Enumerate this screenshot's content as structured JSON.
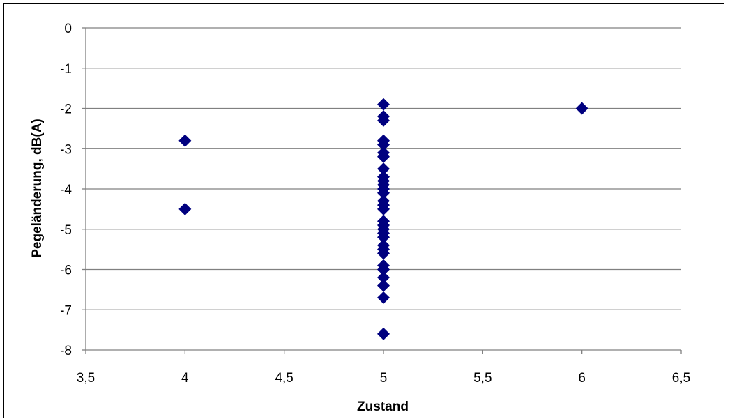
{
  "chart_data": {
    "type": "scatter",
    "title": "",
    "xlabel": "Zustand",
    "ylabel": "Pegeländerung, dB(A)",
    "xlim": [
      3.5,
      6.5
    ],
    "ylim": [
      -8,
      0
    ],
    "xticks": [
      3.5,
      4,
      4.5,
      5,
      5.5,
      6,
      6.5
    ],
    "xtick_labels": [
      "3,5",
      "4",
      "4,5",
      "5",
      "5,5",
      "6",
      "6,5"
    ],
    "yticks": [
      0,
      -1,
      -2,
      -3,
      -4,
      -5,
      -6,
      -7,
      -8
    ],
    "ytick_labels": [
      "0",
      "-1",
      "-2",
      "-3",
      "-4",
      "-5",
      "-6",
      "-7",
      "-8"
    ],
    "grid": "horizontal",
    "marker": "diamond",
    "marker_color": "#00007F",
    "series": [
      {
        "points": [
          {
            "x": 4,
            "y": -2.8
          },
          {
            "x": 4,
            "y": -4.5
          },
          {
            "x": 5,
            "y": -1.9
          },
          {
            "x": 5,
            "y": -2.2
          },
          {
            "x": 5,
            "y": -2.3
          },
          {
            "x": 5,
            "y": -2.8
          },
          {
            "x": 5,
            "y": -2.9
          },
          {
            "x": 5,
            "y": -3.1
          },
          {
            "x": 5,
            "y": -3.2
          },
          {
            "x": 5,
            "y": -3.5
          },
          {
            "x": 5,
            "y": -3.7
          },
          {
            "x": 5,
            "y": -3.8
          },
          {
            "x": 5,
            "y": -3.9
          },
          {
            "x": 5,
            "y": -4.0
          },
          {
            "x": 5,
            "y": -4.1
          },
          {
            "x": 5,
            "y": -4.3
          },
          {
            "x": 5,
            "y": -4.4
          },
          {
            "x": 5,
            "y": -4.5
          },
          {
            "x": 5,
            "y": -4.8
          },
          {
            "x": 5,
            "y": -4.9
          },
          {
            "x": 5,
            "y": -5.0
          },
          {
            "x": 5,
            "y": -5.1
          },
          {
            "x": 5,
            "y": -5.2
          },
          {
            "x": 5,
            "y": -5.4
          },
          {
            "x": 5,
            "y": -5.5
          },
          {
            "x": 5,
            "y": -5.6
          },
          {
            "x": 5,
            "y": -5.9
          },
          {
            "x": 5,
            "y": -6.0
          },
          {
            "x": 5,
            "y": -6.2
          },
          {
            "x": 5,
            "y": -6.4
          },
          {
            "x": 5,
            "y": -6.7
          },
          {
            "x": 5,
            "y": -7.6
          },
          {
            "x": 6,
            "y": -2.0
          }
        ]
      }
    ]
  }
}
